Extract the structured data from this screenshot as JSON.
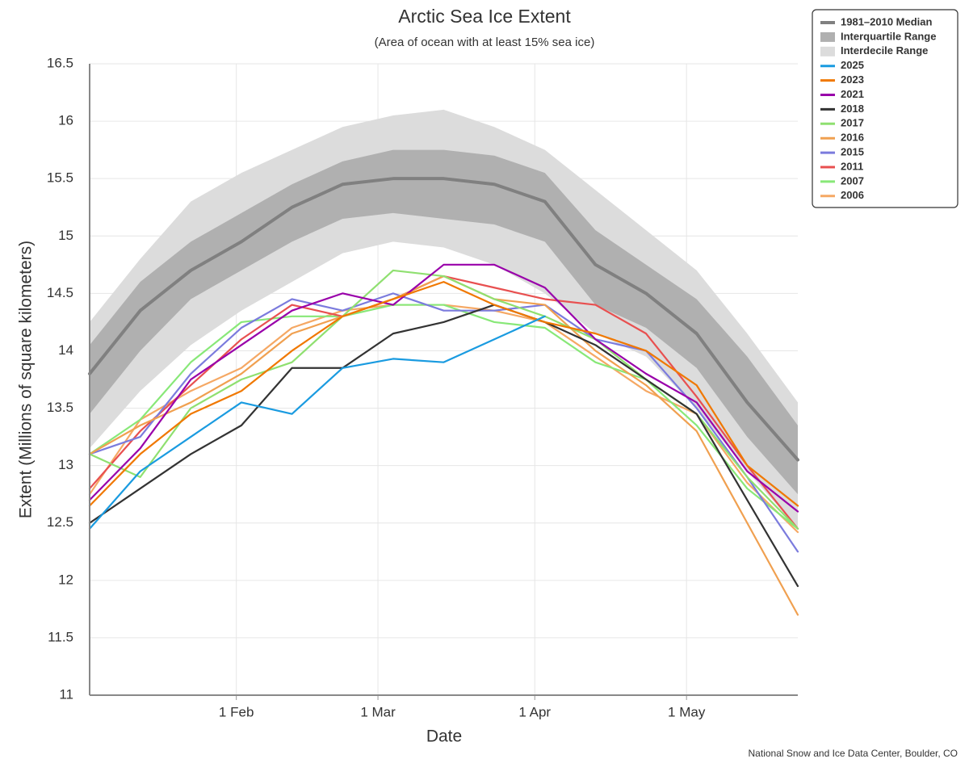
{
  "chart_data": {
    "type": "line",
    "title": "Arctic Sea Ice Extent",
    "subtitle": "(Area of ocean with at least 15% sea ice)",
    "x_label": "Date",
    "y_label": "Extent (Millions of square kilometers)",
    "credit": "National Snow and Ice Data Center, Boulder, CO",
    "x": [
      3,
      13,
      23,
      33,
      43,
      53,
      63,
      73,
      83,
      93,
      103,
      113,
      123,
      133,
      143
    ],
    "xlim": [
      3,
      143
    ],
    "xticks": [
      {
        "value": 32,
        "label": "1 Feb"
      },
      {
        "value": 60,
        "label": "1 Mar"
      },
      {
        "value": 91,
        "label": "1 Apr"
      },
      {
        "value": 121,
        "label": "1 May"
      }
    ],
    "ylim": [
      11,
      16.5
    ],
    "yticks": [
      11,
      11.5,
      12,
      12.5,
      13,
      13.5,
      14,
      14.5,
      15,
      15.5,
      16,
      16.5
    ],
    "grid": true,
    "legend": "top-right",
    "median": {
      "name": "1981–2010 Median",
      "color": "#808080",
      "values": [
        13.8,
        14.35,
        14.7,
        14.95,
        15.25,
        15.45,
        15.5,
        15.5,
        15.45,
        15.3,
        14.75,
        14.5,
        14.15,
        13.55,
        13.05
      ]
    },
    "bands": [
      {
        "name": "Interquartile Range",
        "color": "#b0b0b0",
        "low": [
          13.45,
          14.0,
          14.45,
          14.7,
          14.95,
          15.15,
          15.2,
          15.15,
          15.1,
          14.95,
          14.4,
          14.2,
          13.85,
          13.25,
          12.75
        ],
        "high": [
          14.05,
          14.6,
          14.95,
          15.2,
          15.45,
          15.65,
          15.75,
          15.75,
          15.7,
          15.55,
          15.05,
          14.75,
          14.45,
          13.95,
          13.35
        ]
      },
      {
        "name": "Interdecile Range",
        "color": "#dcdcdc",
        "low": [
          13.15,
          13.65,
          14.05,
          14.35,
          14.6,
          14.85,
          14.95,
          14.9,
          14.75,
          14.5,
          14.15,
          13.95,
          13.5,
          12.95,
          12.45
        ],
        "high": [
          14.25,
          14.8,
          15.3,
          15.55,
          15.75,
          15.95,
          16.05,
          16.1,
          15.95,
          15.75,
          15.4,
          15.05,
          14.7,
          14.15,
          13.55
        ]
      }
    ],
    "series": [
      {
        "name": "2025",
        "color": "#1a9be0",
        "values": [
          12.45,
          12.95,
          13.25,
          13.55,
          13.45,
          13.85,
          13.93,
          13.9,
          14.1,
          14.3,
          null,
          null,
          null,
          null,
          null
        ]
      },
      {
        "name": "2023",
        "color": "#f07800",
        "values": [
          12.65,
          13.1,
          13.45,
          13.65,
          14.0,
          14.3,
          14.45,
          14.6,
          14.4,
          14.25,
          14.15,
          14.0,
          13.7,
          13.0,
          12.65
        ]
      },
      {
        "name": "2021",
        "color": "#9900aa",
        "values": [
          12.7,
          13.15,
          13.75,
          14.05,
          14.35,
          14.5,
          14.4,
          14.75,
          14.75,
          14.55,
          14.1,
          13.8,
          13.55,
          12.95,
          12.6
        ]
      },
      {
        "name": "2018",
        "color": "#333333",
        "values": [
          12.5,
          12.8,
          13.1,
          13.35,
          13.85,
          13.85,
          14.15,
          14.25,
          14.4,
          14.25,
          14.05,
          13.75,
          13.45,
          12.7,
          11.95
        ]
      },
      {
        "name": "2017",
        "color": "#8fe070",
        "values": [
          13.1,
          12.9,
          13.5,
          13.75,
          13.9,
          14.3,
          14.7,
          14.65,
          14.45,
          14.3,
          14.1,
          13.75,
          13.45,
          12.9,
          12.45
        ]
      },
      {
        "name": "2016",
        "color": "#f0a050",
        "values": [
          13.1,
          13.35,
          13.55,
          13.8,
          14.15,
          14.3,
          14.45,
          14.65,
          14.45,
          14.4,
          14.0,
          13.7,
          13.3,
          12.5,
          11.7
        ]
      },
      {
        "name": "2015",
        "color": "#7b7bdd",
        "values": [
          13.1,
          13.25,
          13.8,
          14.2,
          14.45,
          14.35,
          14.5,
          14.35,
          14.35,
          14.4,
          14.1,
          14.0,
          13.5,
          12.9,
          12.25
        ]
      },
      {
        "name": "2011",
        "color": "#e85050",
        "values": [
          12.8,
          13.3,
          13.7,
          14.1,
          14.4,
          14.3,
          14.45,
          14.65,
          14.55,
          14.45,
          14.4,
          14.15,
          13.6,
          13.0,
          12.45
        ]
      },
      {
        "name": "2007",
        "color": "#88e878",
        "values": [
          13.1,
          13.4,
          13.9,
          14.25,
          14.3,
          14.3,
          14.4,
          14.4,
          14.25,
          14.2,
          13.9,
          13.75,
          13.35,
          12.8,
          12.45
        ]
      },
      {
        "name": "2006",
        "color": "#f5a864",
        "values": [
          12.75,
          13.4,
          13.65,
          13.85,
          14.2,
          14.35,
          14.4,
          14.4,
          14.35,
          14.25,
          13.95,
          13.65,
          13.45,
          12.85,
          12.42
        ]
      }
    ]
  }
}
